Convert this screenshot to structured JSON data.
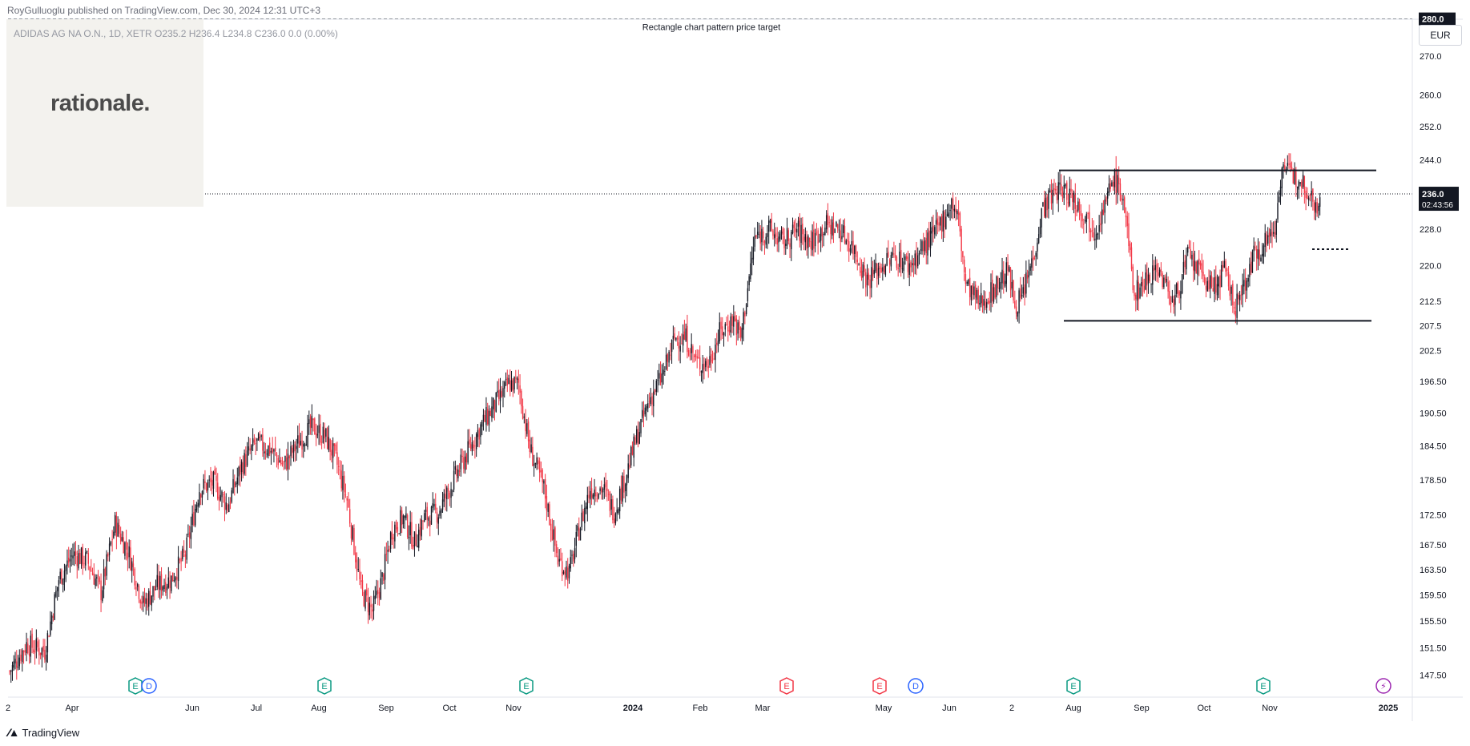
{
  "header": {
    "published": "RoyGulluoglu published on TradingView.com, Dec 30, 2024 12:31 UTC+3",
    "symbol_line": "ADIDAS AG NA O.N., 1D, XETR  O235.2  H236.4  L234.8  C236.0  0.0 (0.00%)"
  },
  "logo": {
    "text": "rationale."
  },
  "currency": "EUR",
  "footer": {
    "brand": "TradingView",
    "icon": "tradingview-logo-icon"
  },
  "colors": {
    "up": "#131722",
    "down": "#f23645",
    "earnings_green": "#089981",
    "earnings_red": "#f23645",
    "dividend_blue": "#2962ff",
    "split_purple": "#9c27b0"
  },
  "chart_data": {
    "type": "candlestick",
    "title": "",
    "x_tick_labels": [
      "Apr",
      "Jun",
      "Jul",
      "Aug",
      "Sep",
      "Oct",
      "Nov",
      "2024",
      "Feb",
      "Mar",
      "May",
      "Jun",
      "Aug",
      "Sep",
      "Oct",
      "Nov",
      "2025"
    ],
    "x_tick_labels_extra": [
      "2",
      "2"
    ],
    "y_tick_labels": [
      "280.0",
      "270.0",
      "260.0",
      "252.0",
      "244.0",
      "236.0",
      "228.0",
      "220.0",
      "212.5",
      "207.5",
      "202.5",
      "196.50",
      "190.50",
      "184.50",
      "178.50",
      "172.50",
      "167.50",
      "163.50",
      "159.50",
      "155.50",
      "151.50",
      "147.50"
    ],
    "y_scale": "log",
    "ylim": [
      145.5,
      283
    ],
    "last_price": {
      "value": "236.0",
      "countdown": "02:43:56"
    },
    "target_line": {
      "value": "280.0",
      "label": "Rectangle chart pattern price target"
    },
    "rectangle_pattern": {
      "top": 241.5,
      "bottom": 208.5
    },
    "markers": [
      {
        "type": "E",
        "color": "green"
      },
      {
        "type": "D",
        "color": "blue"
      },
      {
        "type": "E",
        "color": "green"
      },
      {
        "type": "E",
        "color": "green"
      },
      {
        "type": "E",
        "color": "red"
      },
      {
        "type": "E",
        "color": "red"
      },
      {
        "type": "D",
        "color": "blue"
      },
      {
        "type": "E",
        "color": "green"
      },
      {
        "type": "E",
        "color": "green"
      },
      {
        "type": "split",
        "color": "purple"
      }
    ],
    "price_path": [
      [
        0,
        148
      ],
      [
        12,
        152
      ],
      [
        25,
        151
      ],
      [
        35,
        162
      ],
      [
        45,
        166
      ],
      [
        55,
        165
      ],
      [
        65,
        160
      ],
      [
        75,
        171
      ],
      [
        85,
        166
      ],
      [
        95,
        158
      ],
      [
        105,
        161
      ],
      [
        115,
        162
      ],
      [
        125,
        166
      ],
      [
        135,
        177
      ],
      [
        145,
        178
      ],
      [
        155,
        174
      ],
      [
        165,
        181
      ],
      [
        175,
        185
      ],
      [
        185,
        184
      ],
      [
        195,
        181
      ],
      [
        205,
        185
      ],
      [
        215,
        188
      ],
      [
        225,
        186
      ],
      [
        232,
        182
      ],
      [
        240,
        175
      ],
      [
        250,
        160
      ],
      [
        258,
        157
      ],
      [
        265,
        162
      ],
      [
        272,
        170
      ],
      [
        280,
        172
      ],
      [
        288,
        168
      ],
      [
        295,
        172
      ],
      [
        305,
        173
      ],
      [
        315,
        178
      ],
      [
        325,
        183
      ],
      [
        335,
        188
      ],
      [
        345,
        192
      ],
      [
        355,
        196
      ],
      [
        362,
        196
      ],
      [
        370,
        184
      ],
      [
        380,
        177
      ],
      [
        390,
        165
      ],
      [
        398,
        163
      ],
      [
        405,
        170
      ],
      [
        413,
        177
      ],
      [
        422,
        177
      ],
      [
        430,
        173
      ],
      [
        438,
        179
      ],
      [
        446,
        186
      ],
      [
        455,
        193
      ],
      [
        465,
        198
      ],
      [
        473,
        205
      ],
      [
        481,
        205
      ],
      [
        489,
        200
      ],
      [
        497,
        200
      ],
      [
        505,
        206
      ],
      [
        515,
        209
      ],
      [
        520,
        205
      ],
      [
        530,
        226
      ],
      [
        540,
        228
      ],
      [
        550,
        225
      ],
      [
        560,
        228
      ],
      [
        570,
        225
      ],
      [
        580,
        229
      ],
      [
        590,
        228
      ],
      [
        600,
        224
      ],
      [
        610,
        217
      ],
      [
        620,
        220
      ],
      [
        630,
        222
      ],
      [
        640,
        220
      ],
      [
        650,
        224
      ],
      [
        660,
        228
      ],
      [
        670,
        234
      ],
      [
        675,
        230
      ],
      [
        680,
        216
      ],
      [
        690,
        212
      ],
      [
        700,
        215
      ],
      [
        710,
        219
      ],
      [
        715,
        212
      ],
      [
        720,
        213
      ],
      [
        728,
        222
      ],
      [
        735,
        233
      ],
      [
        745,
        237
      ],
      [
        755,
        236
      ],
      [
        765,
        231
      ],
      [
        772,
        228
      ],
      [
        780,
        234
      ],
      [
        785,
        240
      ],
      [
        792,
        235
      ],
      [
        800,
        214
      ],
      [
        808,
        217
      ],
      [
        816,
        220
      ],
      [
        822,
        216
      ],
      [
        828,
        212
      ],
      [
        838,
        222
      ],
      [
        848,
        218
      ],
      [
        856,
        215
      ],
      [
        864,
        219
      ],
      [
        872,
        211
      ],
      [
        878,
        216
      ],
      [
        885,
        222
      ],
      [
        892,
        225
      ],
      [
        900,
        228
      ],
      [
        905,
        243
      ],
      [
        912,
        240
      ],
      [
        918,
        240
      ],
      [
        925,
        236
      ],
      [
        932,
        233
      ]
    ]
  }
}
